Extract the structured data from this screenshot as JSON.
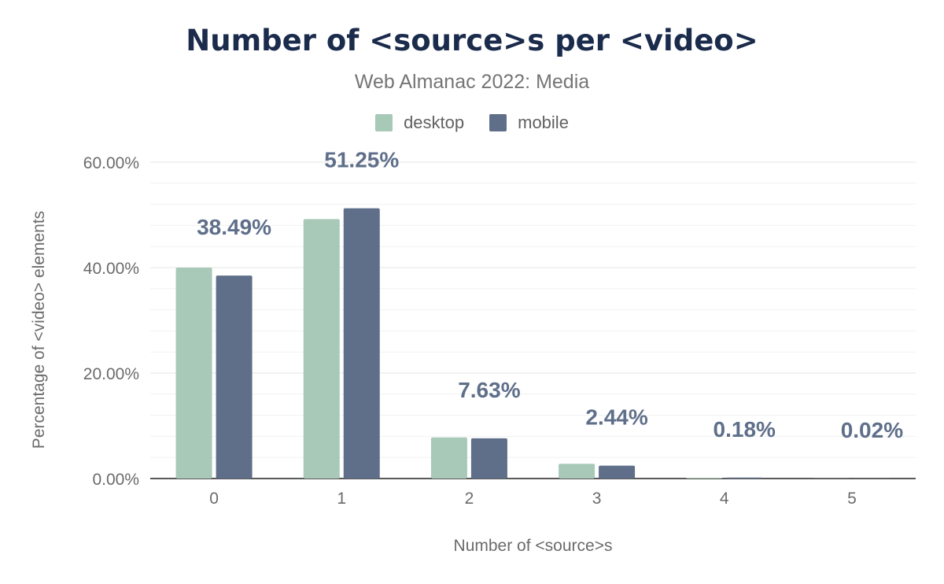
{
  "chart_data": {
    "type": "bar",
    "title": "Number of <source>s per <video>",
    "subtitle": "Web Almanac 2022: Media",
    "xlabel": "Number of <source>s",
    "ylabel": "Percentage of <video> elements",
    "categories": [
      "0",
      "1",
      "2",
      "3",
      "4",
      "5"
    ],
    "series": [
      {
        "name": "desktop",
        "color": "#a8c9b8",
        "values": [
          40.0,
          49.2,
          7.8,
          2.8,
          0.15,
          0.02
        ]
      },
      {
        "name": "mobile",
        "color": "#5f6f8a",
        "values": [
          38.49,
          51.25,
          7.63,
          2.44,
          0.18,
          0.02
        ]
      }
    ],
    "data_labels": [
      "38.49%",
      "51.25%",
      "7.63%",
      "2.44%",
      "0.18%",
      "0.02%"
    ],
    "y_ticks": [
      "0.00%",
      "20.00%",
      "40.00%",
      "60.00%"
    ],
    "ylim": [
      0,
      60
    ],
    "grid": true,
    "legend_position": "top-center"
  }
}
